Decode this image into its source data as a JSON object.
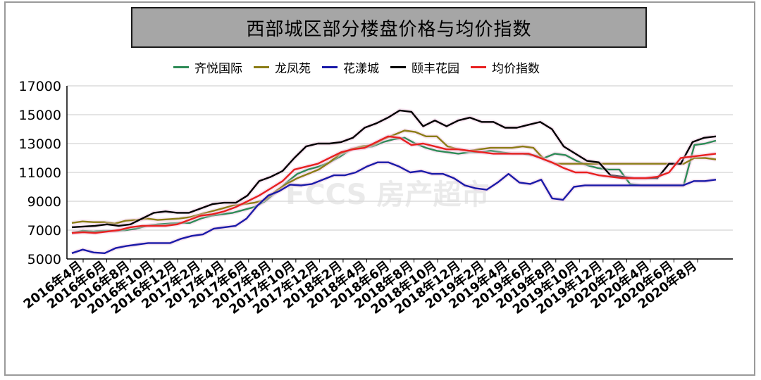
{
  "chart_data": {
    "type": "line",
    "title": "西部城区部分楼盘价格与均价指数",
    "ylim": [
      5000,
      17000
    ],
    "yticks": [
      "17000",
      "15000",
      "13000",
      "11000",
      "9000",
      "7000",
      "5000"
    ],
    "xtick_labels": [
      "2016年4月",
      "2016年6月",
      "2016年8月",
      "2016年10月",
      "2016年12月",
      "2017年2月",
      "2017年4月",
      "2017年6月",
      "2017年8月",
      "2017年10月",
      "2017年12月",
      "2018年2月",
      "2018年4月",
      "2018年6月",
      "2018年8月",
      "2018年10月",
      "2018年12月",
      "2019年2月",
      "2019年4月",
      "2019年6月",
      "2019年8月",
      "2019年10月",
      "2019年12月",
      "2020年2月",
      "2020年4月",
      "2020年6月",
      "2020年8月"
    ],
    "grid": true,
    "legend_position": "top",
    "watermark": "FCCS 房产超市",
    "series": [
      {
        "name": "齐悦国际",
        "color": "#2e8b57",
        "values": [
          6800,
          6950,
          6900,
          6950,
          6950,
          7000,
          7100,
          7300,
          7400,
          7450,
          7500,
          7500,
          7800,
          8000,
          8100,
          8200,
          8400,
          8600,
          9000,
          9600,
          10300,
          10900,
          11200,
          11400,
          11700,
          12100,
          12600,
          12700,
          12800,
          13100,
          13300,
          13400,
          13000,
          12700,
          12500,
          12400,
          12300,
          12400,
          12400,
          12500,
          12400,
          12300,
          12300,
          12200,
          12000,
          12300,
          12200,
          11800,
          11500,
          11300,
          11200,
          11200,
          10200,
          10100,
          10100,
          10100,
          10100,
          10100,
          12900,
          13000,
          13200
        ]
      },
      {
        "name": "龙凤苑",
        "color": "#8b7d16",
        "values": [
          7500,
          7600,
          7550,
          7550,
          7450,
          7650,
          7700,
          7800,
          7700,
          7750,
          7800,
          7900,
          8100,
          8300,
          8500,
          8700,
          8800,
          8900,
          9100,
          9700,
          10200,
          10600,
          10900,
          11200,
          11700,
          12300,
          12600,
          12800,
          12900,
          13300,
          13600,
          13900,
          13800,
          13500,
          13500,
          12800,
          12600,
          12500,
          12600,
          12700,
          12700,
          12700,
          12800,
          12700,
          11900,
          11600,
          11600,
          11600,
          11600,
          11600,
          11600,
          11600,
          11600,
          11600,
          11600,
          11600,
          11600,
          11600,
          12000,
          12000,
          11900
        ]
      },
      {
        "name": "花漾城",
        "color": "#1a1aa8",
        "values": [
          5400,
          5650,
          5450,
          5400,
          5750,
          5900,
          6000,
          6100,
          6100,
          6100,
          6400,
          6600,
          6700,
          7100,
          7200,
          7300,
          7800,
          8700,
          9400,
          9700,
          10150,
          10100,
          10200,
          10500,
          10800,
          10800,
          11000,
          11400,
          11700,
          11700,
          11400,
          11000,
          11100,
          10900,
          10900,
          10600,
          10100,
          9900,
          9800,
          10300,
          10900,
          10300,
          10200,
          10500,
          9200,
          9100,
          10000,
          10100,
          10100,
          10100,
          10100,
          10100,
          10100,
          10100,
          10100,
          10100,
          10100,
          10400,
          10400,
          10500
        ]
      },
      {
        "name": "颐丰花园",
        "color": "#000000",
        "values": [
          7200,
          7250,
          7300,
          7400,
          7300,
          7400,
          7800,
          8200,
          8300,
          8200,
          8200,
          8500,
          8800,
          8900,
          8900,
          9400,
          10400,
          10700,
          11100,
          12000,
          12800,
          13000,
          13000,
          13100,
          13400,
          14100,
          14400,
          14800,
          15300,
          15200,
          14200,
          14600,
          14200,
          14600,
          14800,
          14500,
          14500,
          14100,
          14100,
          14300,
          14500,
          14000,
          12800,
          12300,
          11800,
          11700,
          10800,
          10700,
          10600,
          10600,
          10600,
          11600,
          11600,
          13100,
          13400,
          13500
        ]
      },
      {
        "name": "均价指数",
        "color": "#e82020",
        "values": [
          6800,
          6850,
          6800,
          6900,
          7000,
          7200,
          7300,
          7300,
          7300,
          7400,
          7700,
          8000,
          8100,
          8300,
          8600,
          9000,
          9400,
          9900,
          10400,
          11200,
          11400,
          11600,
          12000,
          12400,
          12600,
          12700,
          13100,
          13500,
          13400,
          12900,
          13000,
          12800,
          12600,
          12600,
          12500,
          12400,
          12300,
          12300,
          12300,
          12300,
          12000,
          11700,
          11300,
          11000,
          11000,
          10800,
          10700,
          10600,
          10600,
          10600,
          10700,
          11000,
          12000,
          12100,
          12200,
          12300
        ]
      }
    ]
  }
}
